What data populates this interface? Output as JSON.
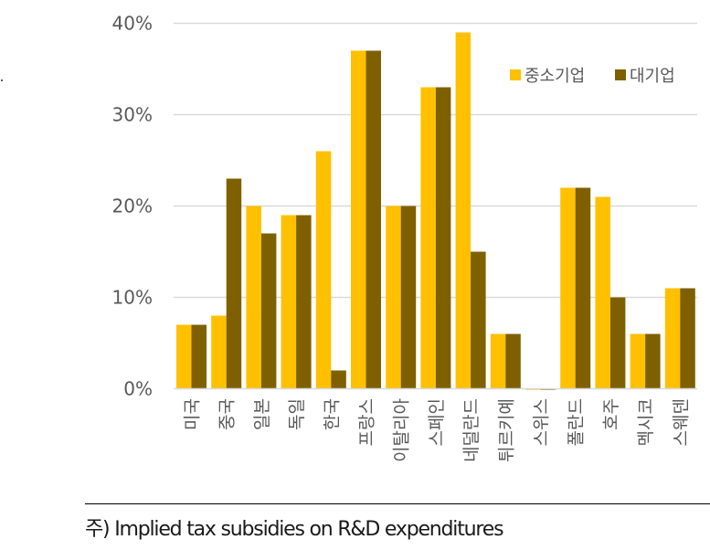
{
  "chart_data": {
    "type": "bar",
    "title": "",
    "xlabel": "",
    "ylabel": "",
    "ylim": [
      0,
      40
    ],
    "yticks": [
      0,
      10,
      20,
      30,
      40
    ],
    "ytick_labels": [
      "0%",
      "10%",
      "20%",
      "30%",
      "40%"
    ],
    "grid": true,
    "legend_position": "top-right",
    "categories": [
      "미국",
      "중국",
      "일본",
      "독일",
      "한국",
      "프랑스",
      "이탈리아",
      "스페인",
      "네덜란드",
      "튀르키예",
      "스위스",
      "폴란드",
      "호주",
      "멕시코",
      "스웨덴"
    ],
    "series": [
      {
        "name": "중소기업",
        "color": "#FFC000",
        "values": [
          7,
          8,
          20,
          19,
          26,
          37,
          20,
          33,
          39,
          6,
          -0.1,
          22,
          21,
          6,
          11
        ]
      },
      {
        "name": "대기업",
        "color": "#7F6000",
        "values": [
          7,
          23,
          17,
          19,
          2,
          37,
          20,
          33,
          15,
          6,
          -0.1,
          22,
          10,
          6,
          11
        ]
      }
    ],
    "unit": "%"
  },
  "footnote": "주) Implied tax subsidies on R&D expenditures",
  "colors": {
    "grid": "#D9D9D9",
    "axis": "#D9D9D9",
    "text": "#595959"
  }
}
